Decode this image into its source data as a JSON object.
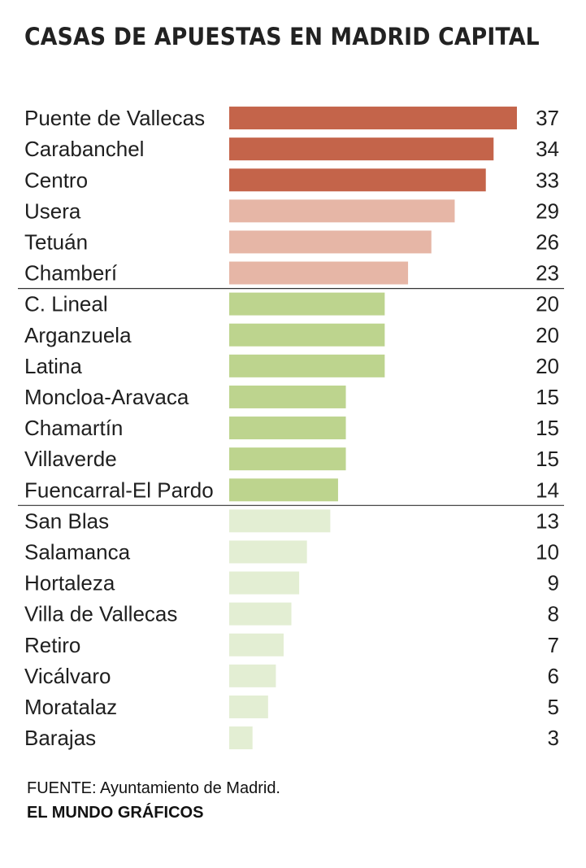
{
  "chart_data": {
    "type": "bar",
    "orientation": "horizontal",
    "title": "CASAS DE APUESTAS EN MADRID CAPITAL",
    "categories": [
      "Puente de Vallecas",
      "Carabanchel",
      "Centro",
      "Usera",
      "Tetuán",
      "Chamberí",
      "C. Lineal",
      "Arganzuela",
      "Latina",
      "Moncloa-Aravaca",
      "Chamartín",
      "Villaverde",
      "Fuencarral-El Pardo",
      "San Blas",
      "Salamanca",
      "Hortaleza",
      "Villa de Vallecas",
      "Retiro",
      "Vicálvaro",
      "Moratalaz",
      "Barajas"
    ],
    "values": [
      37,
      34,
      33,
      29,
      26,
      23,
      20,
      20,
      20,
      15,
      15,
      15,
      14,
      13,
      10,
      9,
      8,
      7,
      6,
      5,
      3
    ],
    "bar_colors": [
      "#c4644a",
      "#c4644a",
      "#c4644a",
      "#e6b6a6",
      "#e6b6a6",
      "#e6b6a6",
      "#bdd48e",
      "#bdd48e",
      "#bdd48e",
      "#bdd48e",
      "#bdd48e",
      "#bdd48e",
      "#bdd48e",
      "#e3eed3",
      "#e3eed3",
      "#e3eed3",
      "#e3eed3",
      "#e3eed3",
      "#e3eed3",
      "#e3eed3",
      "#e3eed3"
    ],
    "group_dividers_after": [
      "Chamberí",
      "Fuencarral-El Pardo"
    ],
    "xlim": [
      0,
      37
    ],
    "grid": false,
    "legend": "none"
  },
  "footer": {
    "source": "FUENTE: Ayuntamiento de Madrid.",
    "credit": "EL MUNDO GRÁFICOS"
  }
}
